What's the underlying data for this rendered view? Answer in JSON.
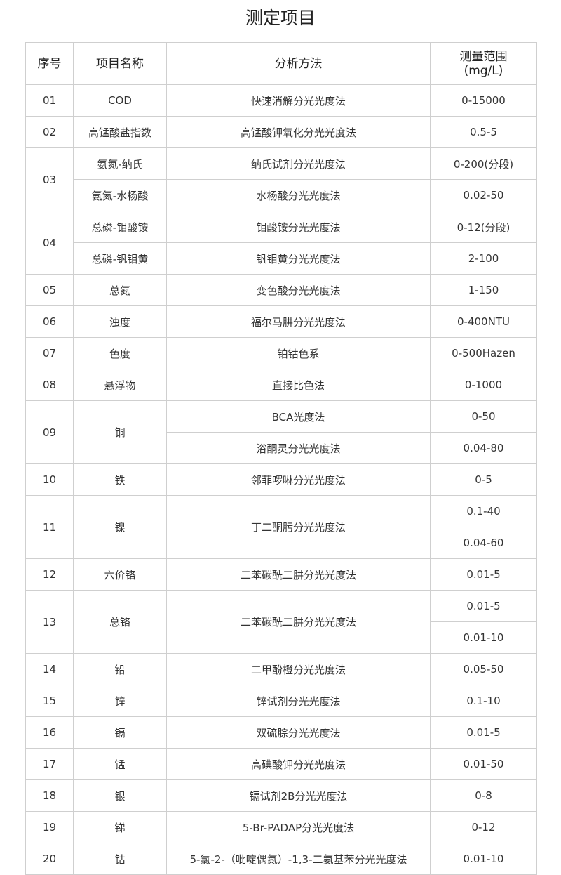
{
  "title": "测定项目",
  "headers": [
    "序号",
    "项目名称",
    "分析方法",
    "测量范围\n(mg/L)"
  ],
  "groups": [
    {
      "no": "01",
      "names": [
        "COD"
      ],
      "methods": [
        "快速消解分光光度法"
      ],
      "ranges": [
        "0-15000"
      ]
    },
    {
      "no": "02",
      "names": [
        "高锰酸盐指数"
      ],
      "methods": [
        "高锰酸钾氧化分光光度法"
      ],
      "ranges": [
        "0.5-5"
      ]
    },
    {
      "no": "03",
      "names": [
        "氨氮-纳氏",
        "氨氮-水杨酸"
      ],
      "methods": [
        "纳氏试剂分光光度法",
        "水杨酸分光光度法"
      ],
      "ranges": [
        "0-200(分段)",
        "0.02-50"
      ]
    },
    {
      "no": "04",
      "names": [
        "总磷-钼酸铵",
        "总磷-钒钼黄"
      ],
      "methods": [
        "钼酸铵分光光度法",
        "钒钼黄分光光度法"
      ],
      "ranges": [
        "0-12(分段)",
        "2-100"
      ]
    },
    {
      "no": "05",
      "names": [
        "总氮"
      ],
      "methods": [
        "变色酸分光光度法"
      ],
      "ranges": [
        "1-150"
      ]
    },
    {
      "no": "06",
      "names": [
        "浊度"
      ],
      "methods": [
        "福尔马肼分光光度法"
      ],
      "ranges": [
        "0-400NTU"
      ]
    },
    {
      "no": "07",
      "names": [
        "色度"
      ],
      "methods": [
        "铂钴色系"
      ],
      "ranges": [
        "0-500Hazen"
      ]
    },
    {
      "no": "08",
      "names": [
        "悬浮物"
      ],
      "methods": [
        "直接比色法"
      ],
      "ranges": [
        "0-1000"
      ]
    },
    {
      "no": "09",
      "names": [
        "铜"
      ],
      "methods": [
        "BCA光度法",
        "浴酮灵分光光度法"
      ],
      "ranges": [
        "0-50",
        "0.04-80"
      ]
    },
    {
      "no": "10",
      "names": [
        "铁"
      ],
      "methods": [
        "邻菲啰啉分光光度法"
      ],
      "ranges": [
        "0-5"
      ]
    },
    {
      "no": "11",
      "names": [
        "镍"
      ],
      "methods": [
        "丁二酮肟分光光度法"
      ],
      "ranges": [
        "0.1-40",
        "0.04-60"
      ]
    },
    {
      "no": "12",
      "names": [
        "六价铬"
      ],
      "methods": [
        "二苯碳酰二肼分光光度法"
      ],
      "ranges": [
        "0.01-5"
      ]
    },
    {
      "no": "13",
      "names": [
        "总铬"
      ],
      "methods": [
        "二苯碳酰二肼分光光度法"
      ],
      "ranges": [
        "0.01-5",
        "0.01-10"
      ]
    },
    {
      "no": "14",
      "names": [
        "铅"
      ],
      "methods": [
        "二甲酚橙分光光度法"
      ],
      "ranges": [
        "0.05-50"
      ]
    },
    {
      "no": "15",
      "names": [
        "锌"
      ],
      "methods": [
        "锌试剂分光光度法"
      ],
      "ranges": [
        "0.1-10"
      ]
    },
    {
      "no": "16",
      "names": [
        "镉"
      ],
      "methods": [
        "双硫腙分光光度法"
      ],
      "ranges": [
        "0.01-5"
      ]
    },
    {
      "no": "17",
      "names": [
        "锰"
      ],
      "methods": [
        "高碘酸钾分光光度法"
      ],
      "ranges": [
        "0.01-50"
      ]
    },
    {
      "no": "18",
      "names": [
        "银"
      ],
      "methods": [
        "镉试剂2B分光光度法"
      ],
      "ranges": [
        "0-8"
      ]
    },
    {
      "no": "19",
      "names": [
        "锑"
      ],
      "methods": [
        "5-Br-PADAP分光光度法"
      ],
      "ranges": [
        "0-12"
      ]
    },
    {
      "no": "20",
      "names": [
        "钴"
      ],
      "methods": [
        "5-氯-2-（吡啶偶氮）-1,3-二氨基苯分光光度法"
      ],
      "ranges": [
        "0.01-10"
      ]
    }
  ]
}
